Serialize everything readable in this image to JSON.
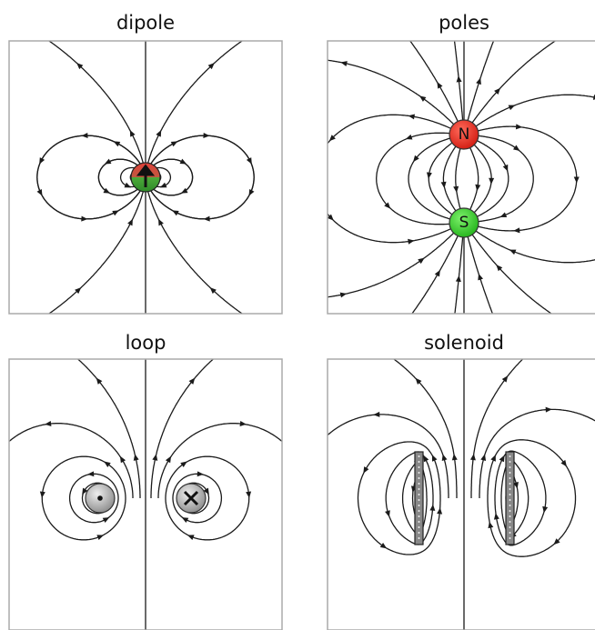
{
  "panels": [
    {
      "title": "dipole"
    },
    {
      "title": "poles",
      "labels": [
        "N",
        "S"
      ]
    },
    {
      "title": "loop"
    },
    {
      "title": "solenoid"
    }
  ]
}
